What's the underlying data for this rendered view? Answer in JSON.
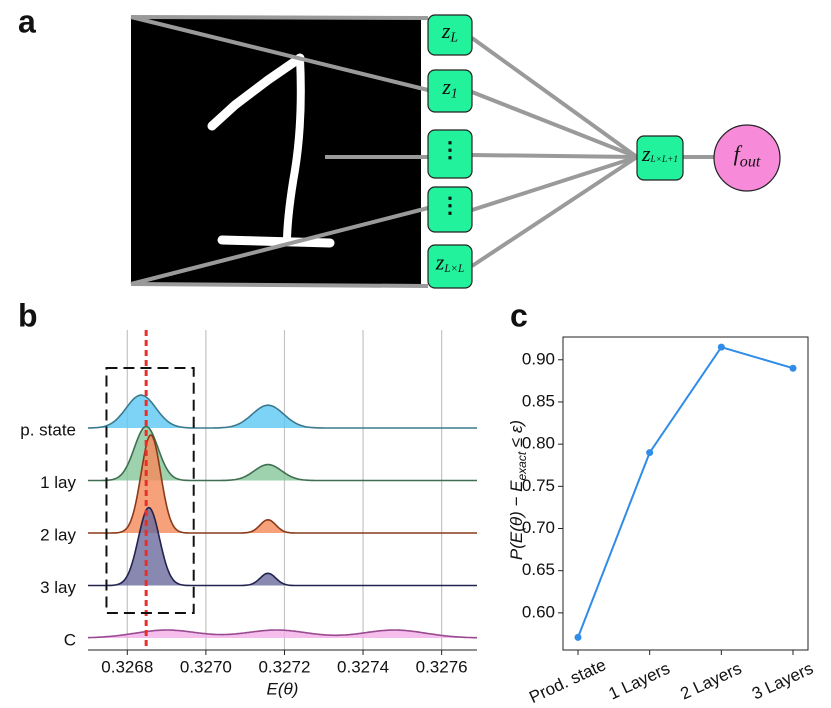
{
  "panel_labels": [
    "a",
    "b",
    "c"
  ],
  "network": {
    "nodes": [
      {
        "symbol": "z",
        "subscript": "L"
      },
      {
        "symbol": "z",
        "subscript": "1"
      },
      {
        "symbol": "⋮"
      },
      {
        "symbol": "⋮"
      },
      {
        "symbol": "z",
        "subscript": "L×L"
      },
      {
        "symbol": "z",
        "subscript": "L×L+1"
      },
      {
        "symbol": "f",
        "subscript": "out"
      }
    ]
  },
  "chart_data": [
    {
      "type": "ridgeline",
      "xlabel": "E(θ)",
      "xlim": [
        0.3267,
        0.32769
      ],
      "xticks": [
        0.3268,
        {
          "value": 0.327,
          "label": "0.3270"
        },
        0.3272,
        0.3274,
        0.3276
      ],
      "grid": true,
      "reference_x": 0.326848,
      "reference_color": "#e8302a",
      "highlight_xlim": [
        0.326747,
        0.326969
      ],
      "series": [
        {
          "name": "p. state",
          "color": "#5cc8f2",
          "edgecolor": "#3b7a8e",
          "peaks": [
            [
              0.326835,
              3.8e-05,
              0.62
            ],
            [
              0.327158,
              4e-05,
              0.43
            ]
          ]
        },
        {
          "name": "1 lay",
          "color": "#86c79a",
          "edgecolor": "#3f6f50",
          "peaks": [
            [
              0.326848,
              3e-05,
              1.02
            ],
            [
              0.327158,
              3.5e-05,
              0.3
            ]
          ]
        },
        {
          "name": "2 lay",
          "color": "#f5895a",
          "edgecolor": "#8a3a1a",
          "peaks": [
            [
              0.32686,
              2.5e-05,
              1.85
            ],
            [
              0.327158,
              2e-05,
              0.25
            ]
          ]
        },
        {
          "name": "3 lay",
          "color": "#6a6a9e",
          "edgecolor": "#232350",
          "peaks": [
            [
              0.326855,
              2.7e-05,
              1.47
            ],
            [
              0.327158,
              2e-05,
              0.23
            ]
          ]
        },
        {
          "name": "C",
          "color": "#f2aee8",
          "edgecolor": "#9a4a90",
          "peaks": [
            [
              0.3269,
              8e-05,
              0.15
            ],
            [
              0.32718,
              8e-05,
              0.15
            ],
            [
              0.32748,
              8e-05,
              0.15
            ]
          ]
        }
      ]
    },
    {
      "type": "line",
      "ylabel": {
        "main": "P(E(θ) − E",
        "subscript": "exact",
        "end": " ≤ ε)"
      },
      "categories": [
        "Prod. state",
        "1 Layers",
        "2 Layers",
        "3 Layers"
      ],
      "values": [
        0.571,
        0.79,
        0.915,
        0.89
      ],
      "color": "#2f8ce8",
      "ylim": [
        0.556,
        0.927
      ],
      "yticks": [
        {
          "value": 0.6,
          "label": "0.60"
        },
        0.65,
        {
          "value": 0.7,
          "label": "0.70"
        },
        0.75,
        {
          "value": 0.8,
          "label": "0.80"
        },
        0.85,
        {
          "value": 0.9,
          "label": "0.90"
        }
      ]
    }
  ]
}
